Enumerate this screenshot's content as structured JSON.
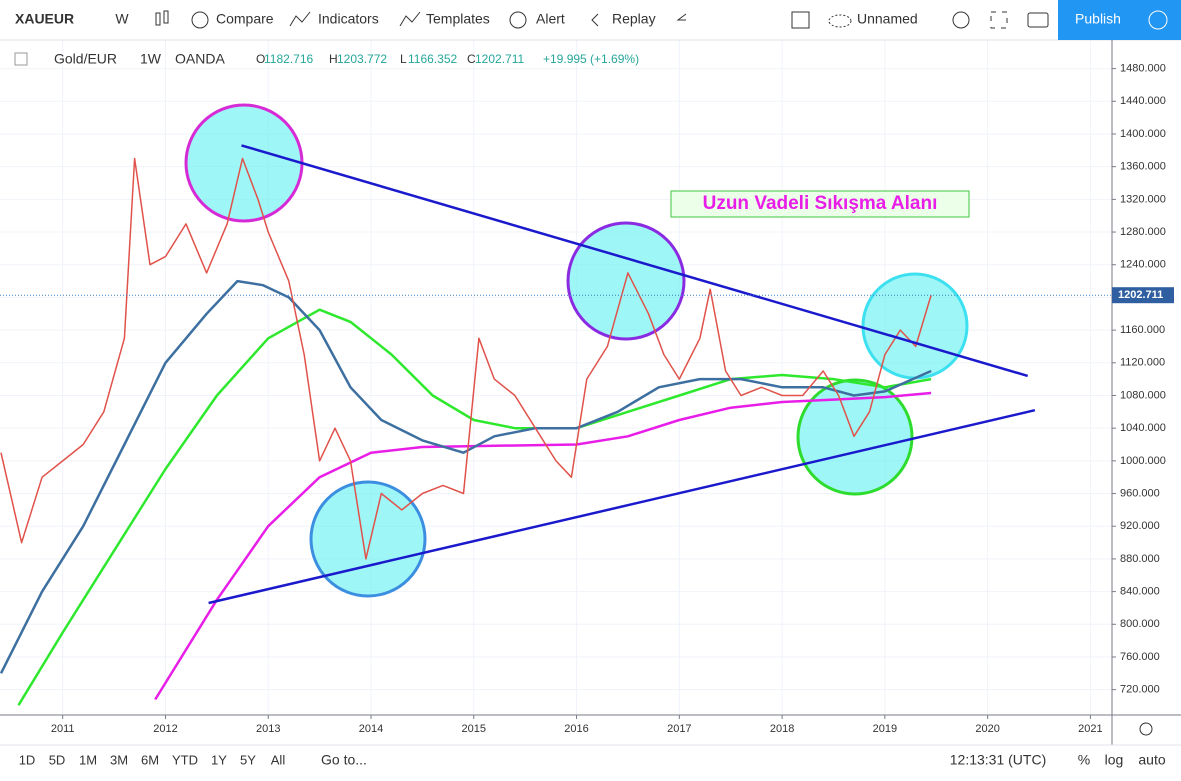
{
  "toolbar": {
    "symbol": "XAUEUR",
    "interval": "W",
    "compare": "Compare",
    "indicators": "Indicators",
    "templates": "Templates",
    "alert": "Alert",
    "replay": "Replay",
    "layout": "Unnamed",
    "publish": "Publish"
  },
  "legend": {
    "name": "Gold/EUR",
    "interval": "1W",
    "source": "OANDA",
    "ohlc": [
      {
        "key": "O",
        "value": 1182.716
      },
      {
        "key": "H",
        "value": 1203.772
      },
      {
        "key": "L",
        "value": 1166.352
      },
      {
        "key": "C",
        "value": 1202.711
      }
    ],
    "change": "+19.995 (+1.69%)"
  },
  "chart_data": {
    "type": "line",
    "xlim": [
      2010.39,
      2021.21
    ],
    "xticks": [
      2011,
      2012,
      2013,
      2014,
      2015,
      2016,
      2017,
      2018,
      2019,
      2020,
      2021
    ],
    "ylim": [
      689,
      1515
    ],
    "yticks": [
      {
        "value": 720,
        "label": "720.000"
      },
      {
        "value": 760,
        "label": "760.000"
      },
      {
        "value": 800,
        "label": "800.000"
      },
      {
        "value": 840,
        "label": "840.000"
      },
      {
        "value": 880,
        "label": "880.000"
      },
      {
        "value": 920,
        "label": "920.000"
      },
      {
        "value": 960,
        "label": "960.000"
      },
      {
        "value": 1000,
        "label": "1000.000"
      },
      {
        "value": 1040,
        "label": "1040.000"
      },
      {
        "value": 1080,
        "label": "1080.000"
      },
      {
        "value": 1120,
        "label": "1120.000"
      },
      {
        "value": 1160,
        "label": "1160.000"
      },
      {
        "value": 1200,
        "label": "1200.000"
      },
      {
        "value": 1240,
        "label": "1240.000"
      },
      {
        "value": 1280,
        "label": "1280.000"
      },
      {
        "value": 1320,
        "label": "1320.000"
      },
      {
        "value": 1360,
        "label": "1360.000"
      },
      {
        "value": 1400,
        "label": "1400.000"
      },
      {
        "value": 1440,
        "label": "1440.000"
      },
      {
        "value": 1480,
        "label": "1480.000"
      }
    ],
    "grid": true,
    "last_value": 1202.711,
    "series": [
      {
        "color": "#e0524a",
        "x": [
          2010.4,
          2010.6,
          2010.8,
          2011.0,
          2011.2,
          2011.4,
          2011.6,
          2011.7,
          2011.85,
          2012.0,
          2012.2,
          2012.4,
          2012.6,
          2012.75,
          2012.9,
          2013.0,
          2013.2,
          2013.35,
          2013.5,
          2013.65,
          2013.8,
          2013.95,
          2014.1,
          2014.3,
          2014.5,
          2014.7,
          2014.9,
          2015.05,
          2015.2,
          2015.4,
          2015.6,
          2015.8,
          2015.95,
          2016.1,
          2016.3,
          2016.5,
          2016.7,
          2016.85,
          2017.0,
          2017.2,
          2017.3,
          2017.45,
          2017.6,
          2017.8,
          2018.0,
          2018.2,
          2018.4,
          2018.55,
          2018.7,
          2018.85,
          2019.0,
          2019.15,
          2019.3,
          2019.45
        ],
        "values": [
          1010,
          900,
          980,
          1000,
          1020,
          1060,
          1150,
          1370,
          1240,
          1250,
          1290,
          1230,
          1290,
          1370,
          1320,
          1280,
          1220,
          1130,
          1000,
          1040,
          1000,
          880,
          960,
          940,
          960,
          970,
          960,
          1150,
          1100,
          1080,
          1040,
          1000,
          980,
          1100,
          1140,
          1230,
          1180,
          1130,
          1100,
          1150,
          1210,
          1110,
          1080,
          1090,
          1080,
          1080,
          1110,
          1080,
          1030,
          1060,
          1130,
          1160,
          1140,
          1202.711
        ]
      },
      {
        "color": "#3d6fa0",
        "x": [
          2010.4,
          2010.8,
          2011.2,
          2011.6,
          2012.0,
          2012.4,
          2012.7,
          2012.95,
          2013.2,
          2013.5,
          2013.8,
          2014.1,
          2014.5,
          2014.9,
          2015.2,
          2015.6,
          2016.0,
          2016.4,
          2016.8,
          2017.2,
          2017.6,
          2018.0,
          2018.4,
          2018.7,
          2019.0,
          2019.45
        ],
        "values": [
          740,
          840,
          920,
          1020,
          1120,
          1180,
          1220,
          1215,
          1200,
          1160,
          1090,
          1050,
          1025,
          1010,
          1030,
          1040,
          1040,
          1060,
          1090,
          1100,
          1100,
          1090,
          1090,
          1080,
          1085,
          1110
        ]
      },
      {
        "color": "#2ee82e",
        "x": [
          2010.57,
          2011.0,
          2011.5,
          2012.0,
          2012.5,
          2013.0,
          2013.5,
          2013.8,
          2014.2,
          2014.6,
          2015.0,
          2015.4,
          2016.0,
          2016.5,
          2017.0,
          2017.5,
          2018.0,
          2018.5,
          2019.0,
          2019.45
        ],
        "values": [
          701,
          790,
          890,
          990,
          1080,
          1150,
          1185,
          1170,
          1130,
          1080,
          1050,
          1040,
          1040,
          1060,
          1080,
          1100,
          1105,
          1100,
          1090,
          1100
        ]
      },
      {
        "color": "#e81ee8",
        "x": [
          2011.9,
          2012.5,
          2013.0,
          2013.5,
          2014.0,
          2014.5,
          2015.0,
          2016.0,
          2016.5,
          2017.0,
          2017.5,
          2018.0,
          2018.5,
          2019.0,
          2019.45
        ],
        "values": [
          708,
          830,
          920,
          980,
          1010,
          1017,
          1018,
          1020,
          1030,
          1050,
          1065,
          1072,
          1075,
          1078,
          1083
        ]
      }
    ],
    "trendlines": [
      {
        "color": "#1a1acc",
        "x": [
          2012.74,
          2020.39
        ],
        "values": [
          1386,
          1104
        ]
      },
      {
        "color": "#1a1acc",
        "x": [
          2012.42,
          2020.46
        ],
        "values": [
          826,
          1062
        ]
      }
    ],
    "annotation": "Uzun Vadeli Sıkışma Alanı"
  },
  "bottom_bar": {
    "ranges": [
      "1D",
      "5D",
      "1M",
      "3M",
      "6M",
      "YTD",
      "1Y",
      "5Y",
      "All"
    ],
    "goto": "Go to...",
    "time": "12:13:31 (UTC)",
    "percent": "%",
    "log": "log",
    "auto": "auto"
  }
}
